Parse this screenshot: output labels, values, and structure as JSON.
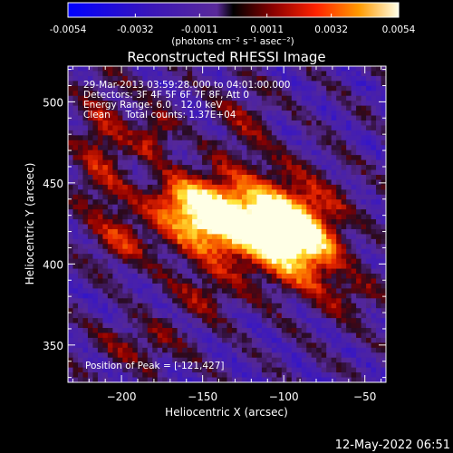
{
  "colorbar": {
    "ticks": [
      "-0.0054",
      "-0.0032",
      "-0.0011",
      "0.0011",
      "0.0032",
      "0.0054"
    ],
    "tick_values": [
      -0.0054,
      -0.0032,
      -0.0011,
      0.0011,
      0.0032,
      0.0054
    ],
    "units_label": "(photons cm⁻² s⁻¹ asec⁻²)",
    "range": [
      -0.0054,
      0.0054
    ]
  },
  "chart_data": {
    "type": "heatmap",
    "title": "Reconstructed RHESSI Image",
    "xlabel": "Heliocentric X (arcsec)",
    "ylabel": "Heliocentric Y (arcsec)",
    "xlim": [
      -233,
      -37
    ],
    "ylim": [
      327,
      522
    ],
    "xticks": [
      -200,
      -150,
      -100,
      -50
    ],
    "yticks": [
      350,
      400,
      450,
      500
    ],
    "value_range": [
      -0.0054,
      0.0054
    ],
    "annotations": [
      "29-Mar-2013 03:59:28.000 to 04:01:00.000",
      "Detectors: 3F 4F 5F 6F 7F 8F, Att 0",
      "Energy Range: 6.0 - 12.0 keV",
      "Clean     Total counts: 1.37E+04"
    ],
    "peak_label": "Position of Peak = [-121,427]",
    "peak": [
      -121,
      427
    ]
  },
  "footer": {
    "timestamp": "12-May-2022 06:51"
  }
}
